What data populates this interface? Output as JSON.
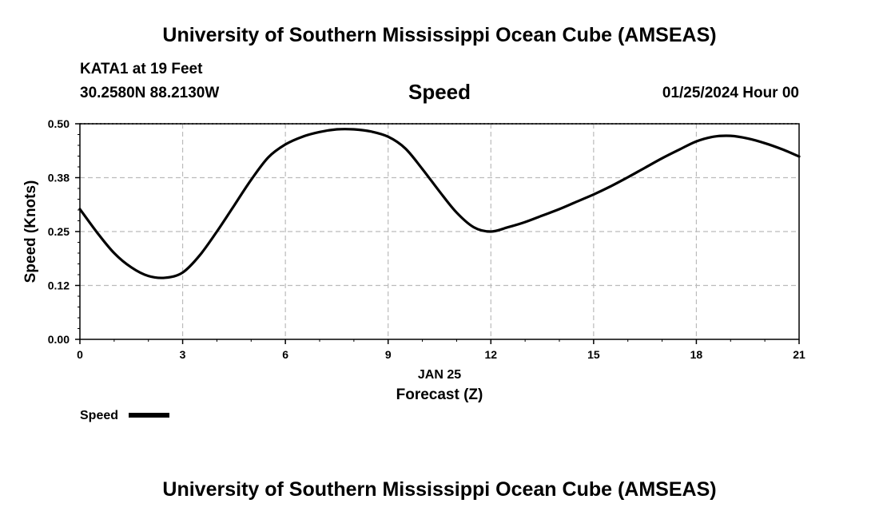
{
  "header": {
    "title": "University of Southern Mississippi Ocean Cube (AMSEAS)",
    "station": "KATA1 at 19 Feet",
    "coordinates": "30.2580N  88.2130W",
    "variable": "Speed",
    "datetime": "01/25/2024 Hour 00"
  },
  "footer": {
    "title": "University of Southern Mississippi Ocean Cube (AMSEAS)"
  },
  "chart_data": {
    "type": "line",
    "title": "Speed",
    "xlabel": "Forecast (Z)",
    "xsublabel": "JAN 25",
    "ylabel": "Speed (Knots)",
    "xlim": [
      0,
      21
    ],
    "ylim": [
      0,
      0.5
    ],
    "xticks": [
      0,
      3,
      6,
      9,
      12,
      15,
      18,
      21
    ],
    "xtick_labels": [
      "0",
      "3",
      "6",
      "9",
      "12",
      "15",
      "18",
      "21"
    ],
    "yticks": [
      0,
      0.125,
      0.25,
      0.375,
      0.5
    ],
    "ytick_labels": [
      "0.00",
      "0.12",
      "0.25",
      "0.38",
      "0.50"
    ],
    "grid": true,
    "line_color": "#000000",
    "grid_color": "#bbbbbb",
    "legend": {
      "placement": "bottom-left",
      "entries": [
        "Speed"
      ]
    },
    "series": [
      {
        "name": "Speed",
        "x": [
          0,
          0.5,
          1,
          1.5,
          2,
          2.5,
          3,
          3.5,
          4,
          4.5,
          5,
          5.5,
          6,
          6.5,
          7,
          7.5,
          8,
          8.5,
          9,
          9.5,
          10,
          10.5,
          11,
          11.5,
          12,
          12.5,
          13,
          13.5,
          14,
          14.5,
          15,
          15.5,
          16,
          16.5,
          17,
          17.5,
          18,
          18.5,
          19,
          19.5,
          20,
          20.5,
          21
        ],
        "y": [
          0.302,
          0.248,
          0.2,
          0.167,
          0.147,
          0.143,
          0.155,
          0.195,
          0.25,
          0.31,
          0.37,
          0.422,
          0.452,
          0.47,
          0.481,
          0.487,
          0.487,
          0.482,
          0.47,
          0.443,
          0.395,
          0.343,
          0.294,
          0.26,
          0.25,
          0.26,
          0.272,
          0.287,
          0.302,
          0.319,
          0.336,
          0.355,
          0.376,
          0.398,
          0.42,
          0.44,
          0.459,
          0.47,
          0.472,
          0.466,
          0.455,
          0.441,
          0.424
        ]
      }
    ]
  }
}
